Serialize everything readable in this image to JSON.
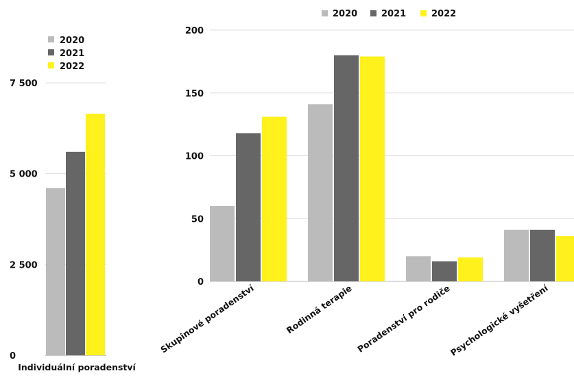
{
  "chart_data": [
    {
      "type": "bar",
      "categories": [
        "Individuální poradenství"
      ],
      "series": [
        {
          "name": "2020",
          "values": [
            4600
          ]
        },
        {
          "name": "2021",
          "values": [
            5600
          ]
        },
        {
          "name": "2022",
          "values": [
            6650
          ]
        }
      ],
      "ylim": [
        0,
        7500
      ],
      "yticks": [
        "0",
        "2 500",
        "5 000",
        "7 500"
      ],
      "legend": "top-left",
      "grid": true,
      "colors": [
        "#bbbbbb",
        "#666666",
        "#fff11c"
      ]
    },
    {
      "type": "bar",
      "categories": [
        "Skupinové poradenství",
        "Rodinná terapie",
        "Poradenství pro rodiče",
        "Psychologické vyšetření"
      ],
      "series": [
        {
          "name": "2020",
          "values": [
            60,
            141,
            20,
            41
          ]
        },
        {
          "name": "2021",
          "values": [
            118,
            180,
            16,
            41
          ]
        },
        {
          "name": "2022",
          "values": [
            131,
            179,
            19,
            36
          ]
        }
      ],
      "ylim": [
        0,
        200
      ],
      "yticks": [
        "0",
        "50",
        "100",
        "150",
        "200"
      ],
      "legend": "top-center",
      "grid": true,
      "colors": [
        "#bbbbbb",
        "#666666",
        "#fff11c"
      ]
    }
  ]
}
